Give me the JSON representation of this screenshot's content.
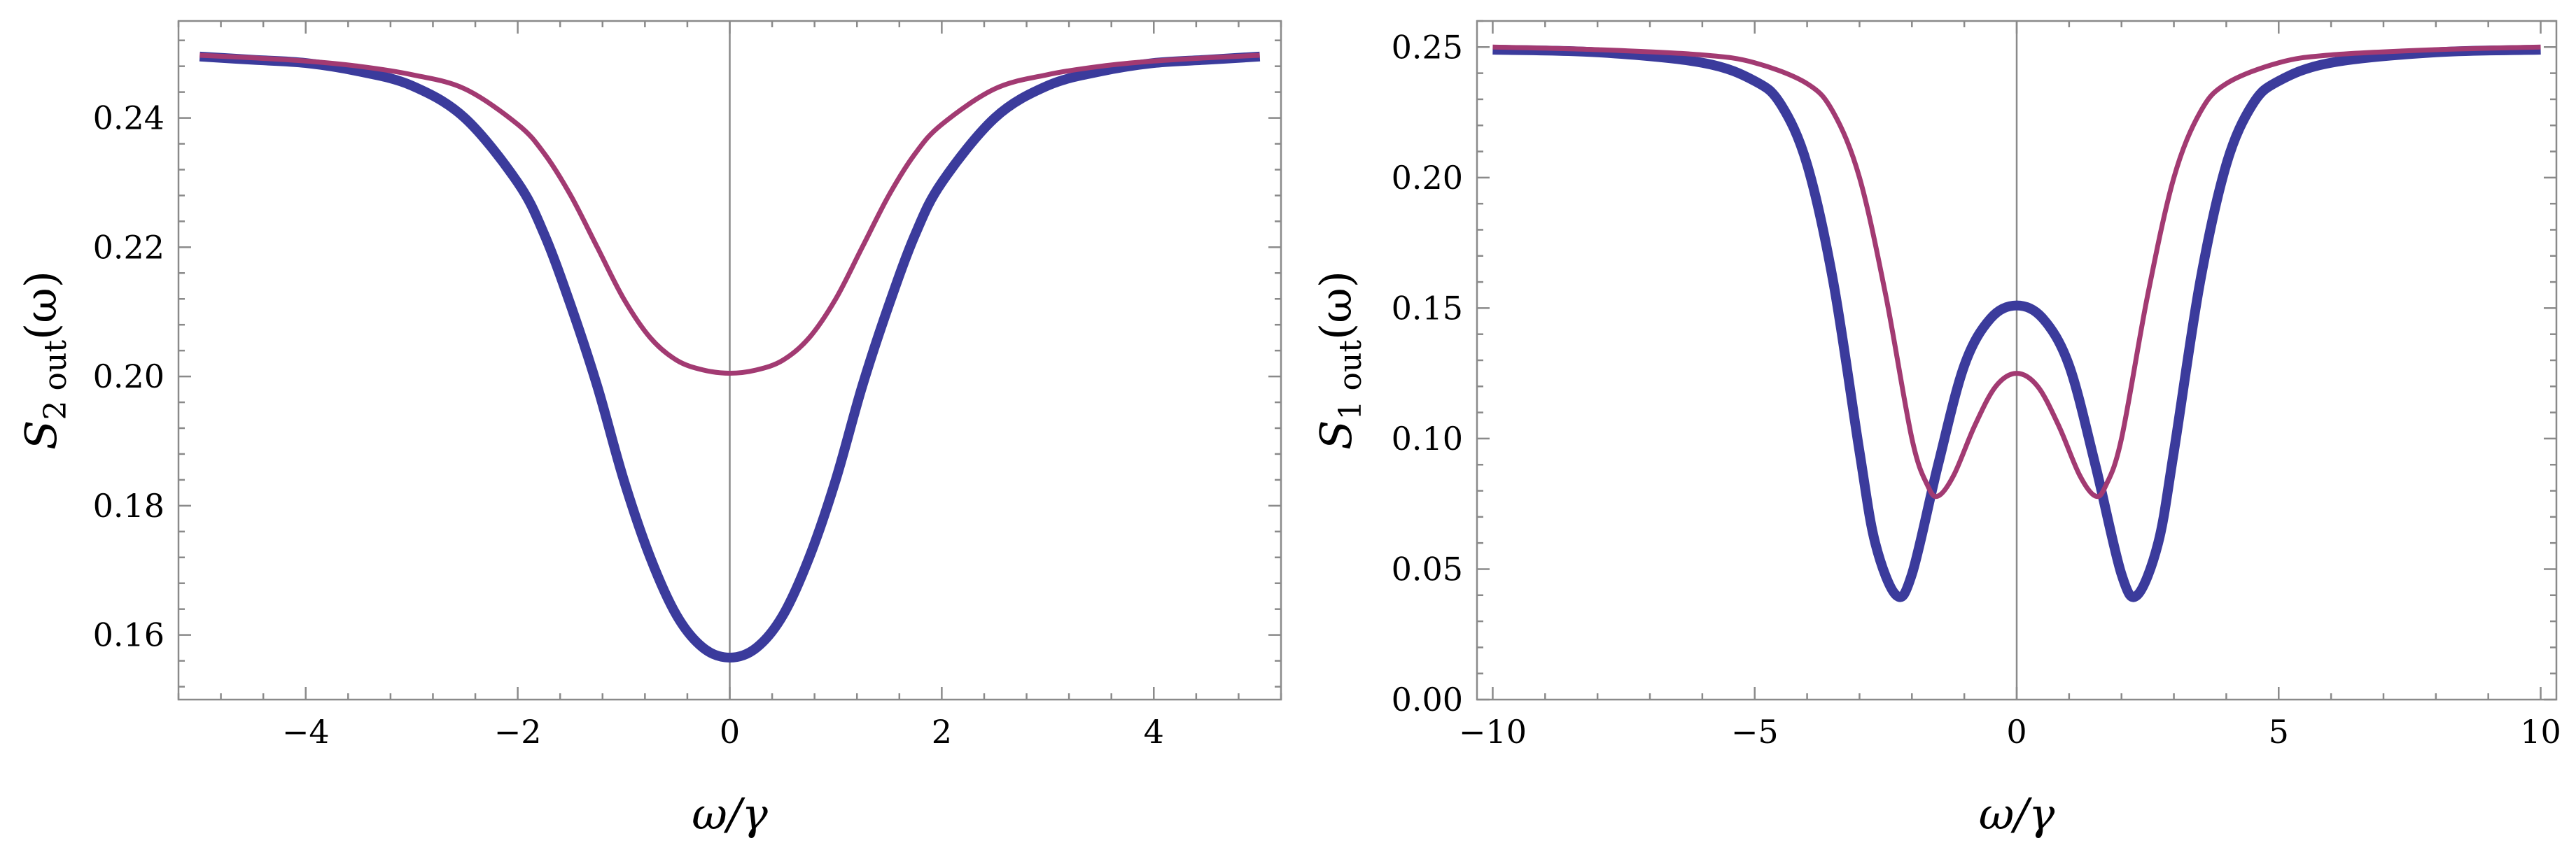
{
  "chart_data": [
    {
      "type": "line",
      "xlabel": "ω/γ",
      "ylabel": "S2 out(ω)",
      "ylabel_parts": {
        "base": "S",
        "sub": "2 out",
        "arg": "(ω)"
      },
      "xlim": [
        -5.2,
        5.2
      ],
      "ylim": [
        0.15,
        0.255
      ],
      "xticks": [
        -4,
        -2,
        0,
        2,
        4
      ],
      "xtick_labels": [
        "−4",
        "−2",
        "0",
        "2",
        "4"
      ],
      "yticks": [
        0.16,
        0.18,
        0.2,
        0.22,
        0.24
      ],
      "ytick_labels": [
        "0.16",
        "0.18",
        "0.20",
        "0.22",
        "0.24"
      ],
      "grid": false,
      "vertical_line_at_x": 0,
      "series": [
        {
          "color": "#3b3b9c",
          "x": [
            -5,
            -4.5,
            -4,
            -3.5,
            -3,
            -2.5,
            -2,
            -1.75,
            -1.5,
            -1.25,
            -1,
            -0.75,
            -0.5,
            -0.25,
            0,
            0.25,
            0.5,
            0.75,
            1,
            1.25,
            1.5,
            1.75,
            2,
            2.5,
            3,
            3.5,
            4,
            4.5,
            5
          ],
          "values": [
            0.2495,
            0.249,
            0.2485,
            0.2472,
            0.245,
            0.24,
            0.23,
            0.222,
            0.211,
            0.1985,
            0.184,
            0.172,
            0.163,
            0.158,
            0.1565,
            0.158,
            0.163,
            0.172,
            0.184,
            0.1985,
            0.211,
            0.222,
            0.23,
            0.24,
            0.245,
            0.2472,
            0.2485,
            0.249,
            0.2495
          ]
        },
        {
          "color": "#a23a72",
          "x": [
            -5,
            -4.5,
            -4,
            -3.5,
            -3,
            -2.5,
            -2,
            -1.75,
            -1.5,
            -1.25,
            -1,
            -0.75,
            -0.5,
            -0.25,
            0,
            0.25,
            0.5,
            0.75,
            1,
            1.25,
            1.5,
            1.75,
            2,
            2.5,
            3,
            3.5,
            4,
            4.5,
            5
          ],
          "values": [
            0.2497,
            0.2493,
            0.2488,
            0.248,
            0.2467,
            0.2445,
            0.239,
            0.2345,
            0.228,
            0.22,
            0.212,
            0.206,
            0.2025,
            0.201,
            0.2005,
            0.201,
            0.2025,
            0.206,
            0.212,
            0.22,
            0.228,
            0.2345,
            0.239,
            0.2445,
            0.2467,
            0.248,
            0.2488,
            0.2493,
            0.2497
          ]
        }
      ]
    },
    {
      "type": "line",
      "xlabel": "ω/γ",
      "ylabel": "S1 out(ω)",
      "ylabel_parts": {
        "base": "S",
        "sub": "1 out",
        "arg": "(ω)"
      },
      "xlim": [
        -10.3,
        10.3
      ],
      "ylim": [
        0,
        0.26
      ],
      "xticks": [
        -10,
        -5,
        0,
        5,
        10
      ],
      "xtick_labels": [
        "−10",
        "−5",
        "0",
        "5",
        "10"
      ],
      "yticks": [
        0.0,
        0.05,
        0.1,
        0.15,
        0.2,
        0.25
      ],
      "ytick_labels": [
        "0.00",
        "0.05",
        "0.10",
        "0.15",
        "0.20",
        "0.25"
      ],
      "grid": false,
      "vertical_line_at_x": 0,
      "series": [
        {
          "color": "#3b3b9c",
          "x": [
            -10,
            -8,
            -6,
            -5,
            -4.5,
            -4,
            -3.5,
            -3,
            -2.7,
            -2.3,
            -2,
            -1.5,
            -1,
            -0.5,
            0,
            0.5,
            1,
            1.5,
            2,
            2.3,
            2.7,
            3,
            3.5,
            4,
            4.5,
            5,
            6,
            8,
            10
          ],
          "values": [
            0.249,
            0.248,
            0.244,
            0.237,
            0.228,
            0.205,
            0.16,
            0.095,
            0.06,
            0.04,
            0.048,
            0.09,
            0.128,
            0.146,
            0.151,
            0.146,
            0.128,
            0.09,
            0.048,
            0.04,
            0.06,
            0.095,
            0.16,
            0.205,
            0.228,
            0.237,
            0.244,
            0.248,
            0.249
          ]
        },
        {
          "color": "#a23a72",
          "x": [
            -10,
            -8,
            -6,
            -5,
            -4,
            -3.5,
            -3,
            -2.5,
            -2,
            -1.7,
            -1.5,
            -1.2,
            -0.8,
            -0.4,
            0,
            0.4,
            0.8,
            1.2,
            1.5,
            1.7,
            2,
            2.5,
            3,
            3.5,
            4,
            5,
            6,
            8,
            10
          ],
          "values": [
            0.25,
            0.249,
            0.247,
            0.244,
            0.236,
            0.225,
            0.2,
            0.155,
            0.1,
            0.082,
            0.078,
            0.086,
            0.105,
            0.12,
            0.125,
            0.12,
            0.105,
            0.086,
            0.078,
            0.082,
            0.1,
            0.155,
            0.2,
            0.225,
            0.236,
            0.244,
            0.247,
            0.249,
            0.25
          ]
        }
      ]
    }
  ]
}
